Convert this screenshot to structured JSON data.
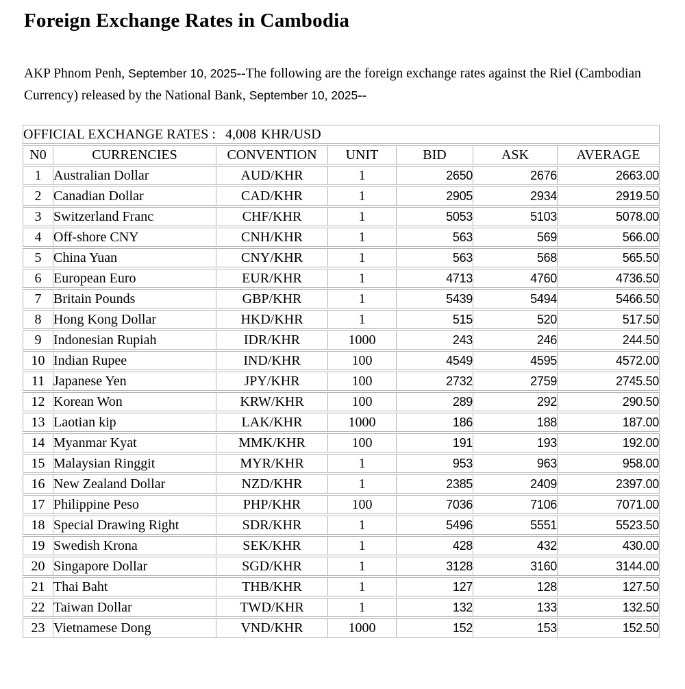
{
  "page": {
    "title": "Foreign Exchange Rates in Cambodia",
    "intro": {
      "part1": "AKP Phnom Penh, ",
      "date1": "September 10, 2025",
      "part2": "--The following are the foreign exchange rates against the Riel (Cambodian Currency) released by the National Bank, ",
      "date2": "September 10, 2025",
      "part3": "--"
    }
  },
  "table": {
    "official_label": "OFFICIAL EXCHANGE RATES :",
    "official_rate": "4,008",
    "official_unit": "KHR/USD",
    "columns": [
      "N0",
      "CURRENCIES",
      "CONVENTION",
      "UNIT",
      "BID",
      "ASK",
      "AVERAGE"
    ],
    "rows": [
      {
        "no": "1",
        "currency": "Australian Dollar",
        "convention": "AUD/KHR",
        "unit": "1",
        "bid": "2650",
        "ask": "2676",
        "average": "2663.00"
      },
      {
        "no": "2",
        "currency": "Canadian Dollar",
        "convention": "CAD/KHR",
        "unit": "1",
        "bid": "2905",
        "ask": "2934",
        "average": "2919.50"
      },
      {
        "no": "3",
        "currency": "Switzerland Franc",
        "convention": "CHF/KHR",
        "unit": "1",
        "bid": "5053",
        "ask": "5103",
        "average": "5078.00"
      },
      {
        "no": "4",
        "currency": "Off-shore CNY",
        "convention": "CNH/KHR",
        "unit": "1",
        "bid": "563",
        "ask": "569",
        "average": "566.00"
      },
      {
        "no": "5",
        "currency": "China Yuan",
        "convention": "CNY/KHR",
        "unit": "1",
        "bid": "563",
        "ask": "568",
        "average": "565.50"
      },
      {
        "no": "6",
        "currency": "European Euro",
        "convention": "EUR/KHR",
        "unit": "1",
        "bid": "4713",
        "ask": "4760",
        "average": "4736.50"
      },
      {
        "no": "7",
        "currency": "Britain Pounds",
        "convention": "GBP/KHR",
        "unit": "1",
        "bid": "5439",
        "ask": "5494",
        "average": "5466.50"
      },
      {
        "no": "8",
        "currency": "Hong Kong Dollar",
        "convention": "HKD/KHR",
        "unit": "1",
        "bid": "515",
        "ask": "520",
        "average": "517.50"
      },
      {
        "no": "9",
        "currency": "Indonesian Rupiah",
        "convention": "IDR/KHR",
        "unit": "1000",
        "bid": "243",
        "ask": "246",
        "average": "244.50"
      },
      {
        "no": "10",
        "currency": "Indian Rupee",
        "convention": "IND/KHR",
        "unit": "100",
        "bid": "4549",
        "ask": "4595",
        "average": "4572.00"
      },
      {
        "no": "11",
        "currency": "Japanese Yen",
        "convention": "JPY/KHR",
        "unit": "100",
        "bid": "2732",
        "ask": "2759",
        "average": "2745.50"
      },
      {
        "no": "12",
        "currency": "Korean Won",
        "convention": "KRW/KHR",
        "unit": "100",
        "bid": "289",
        "ask": "292",
        "average": "290.50"
      },
      {
        "no": "13",
        "currency": "Laotian kip",
        "convention": "LAK/KHR",
        "unit": "1000",
        "bid": "186",
        "ask": "188",
        "average": "187.00"
      },
      {
        "no": "14",
        "currency": "Myanmar Kyat",
        "convention": "MMK/KHR",
        "unit": "100",
        "bid": "191",
        "ask": "193",
        "average": "192.00"
      },
      {
        "no": "15",
        "currency": "Malaysian Ringgit",
        "convention": "MYR/KHR",
        "unit": "1",
        "bid": "953",
        "ask": "963",
        "average": "958.00"
      },
      {
        "no": "16",
        "currency": "New Zealand Dollar",
        "convention": "NZD/KHR",
        "unit": "1",
        "bid": "2385",
        "ask": "2409",
        "average": "2397.00"
      },
      {
        "no": "17",
        "currency": "Philippine Peso",
        "convention": "PHP/KHR",
        "unit": "100",
        "bid": "7036",
        "ask": "7106",
        "average": "7071.00"
      },
      {
        "no": "18",
        "currency": "Special Drawing Right",
        "convention": "SDR/KHR",
        "unit": "1",
        "bid": "5496",
        "ask": "5551",
        "average": "5523.50"
      },
      {
        "no": "19",
        "currency": "Swedish Krona",
        "convention": "SEK/KHR",
        "unit": "1",
        "bid": "428",
        "ask": "432",
        "average": "430.00"
      },
      {
        "no": "20",
        "currency": "Singapore Dollar",
        "convention": "SGD/KHR",
        "unit": "1",
        "bid": "3128",
        "ask": "3160",
        "average": "3144.00"
      },
      {
        "no": "21",
        "currency": "Thai Baht",
        "convention": "THB/KHR",
        "unit": "1",
        "bid": "127",
        "ask": "128",
        "average": "127.50"
      },
      {
        "no": "22",
        "currency": "Taiwan Dollar",
        "convention": "TWD/KHR",
        "unit": "1",
        "bid": "132",
        "ask": "133",
        "average": "132.50"
      },
      {
        "no": "23",
        "currency": "Vietnamese Dong",
        "convention": "VND/KHR",
        "unit": "1000",
        "bid": "152",
        "ask": "153",
        "average": "152.50"
      }
    ]
  }
}
